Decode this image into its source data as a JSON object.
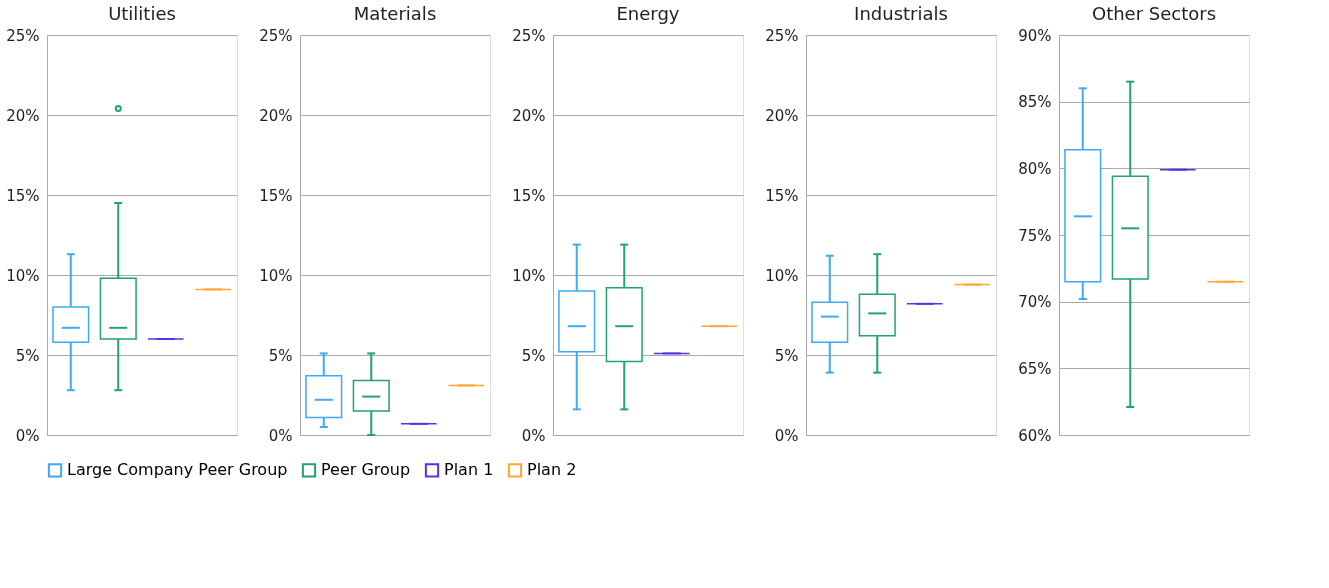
{
  "chart_data": [
    {
      "type": "box",
      "title": "Utilities",
      "categories": [
        null,
        null,
        null,
        null
      ],
      "ylim": [
        0,
        25
      ],
      "yticks": [
        {
          "value": 0,
          "label": "0%"
        },
        {
          "value": 5,
          "label": "5%"
        },
        {
          "value": 10,
          "label": "10%"
        },
        {
          "value": 15,
          "label": "15%"
        },
        {
          "value": 20,
          "label": "20%"
        },
        {
          "value": 25,
          "label": "25%"
        }
      ],
      "grid": "y",
      "legend": "bottom",
      "tick_labels": "y",
      "series": [
        {
          "name": "Large Company Peer Group",
          "color": "#3fa9f5",
          "type": "box",
          "boxes": [
            {
              "low": 2.8,
              "q1": 5.8,
              "median": 6.7,
              "q3": 8.0,
              "high": 11.3
            },
            null,
            null,
            null
          ]
        },
        {
          "name": "Peer Group",
          "color": "#21a36f",
          "type": "box",
          "boxes": [
            null,
            {
              "low": 2.8,
              "q1": 6.0,
              "median": 6.7,
              "q3": 9.8,
              "high": 14.5,
              "outliers": [
                20.4
              ]
            },
            null,
            null
          ]
        },
        {
          "name": "Plan 1",
          "color": "#5b2ee8",
          "type": "box",
          "boxes": [
            null,
            null,
            {
              "low": 6.0,
              "q1": 6.0,
              "median": 6.0,
              "q3": 6.0,
              "high": 6.0
            },
            null
          ]
        },
        {
          "name": "Plan 2",
          "color": "#ffa630",
          "type": "box",
          "boxes": [
            null,
            null,
            null,
            {
              "low": 9.1,
              "q1": 9.1,
              "median": 9.1,
              "q3": 9.1,
              "high": 9.1
            }
          ]
        }
      ]
    },
    {
      "type": "box",
      "title": "Materials",
      "categories": [
        null,
        null,
        null,
        null
      ],
      "ylim": [
        0,
        25
      ],
      "yticks": [
        {
          "value": 0,
          "label": "0%"
        },
        {
          "value": 5,
          "label": "5%"
        },
        {
          "value": 10,
          "label": "10%"
        },
        {
          "value": 15,
          "label": "15%"
        },
        {
          "value": 20,
          "label": "20%"
        },
        {
          "value": 25,
          "label": "25%"
        }
      ],
      "grid": "y",
      "tick_labels": "y",
      "series": [
        {
          "color": "#3fa9f5",
          "type": "box",
          "boxes": [
            {
              "low": 0.5,
              "q1": 1.1,
              "median": 2.2,
              "q3": 3.7,
              "high": 5.1
            },
            null,
            null,
            null
          ]
        },
        {
          "color": "#21a36f",
          "type": "box",
          "boxes": [
            null,
            {
              "low": 0.0,
              "q1": 1.5,
              "median": 2.4,
              "q3": 3.4,
              "high": 5.1
            },
            null,
            null
          ]
        },
        {
          "color": "#5b2ee8",
          "type": "box",
          "boxes": [
            null,
            null,
            {
              "low": 0.7,
              "q1": 0.7,
              "median": 0.7,
              "q3": 0.7,
              "high": 0.7
            },
            null
          ]
        },
        {
          "color": "#ffa630",
          "type": "box",
          "boxes": [
            null,
            null,
            null,
            {
              "low": 3.1,
              "q1": 3.1,
              "median": 3.1,
              "q3": 3.1,
              "high": 3.1
            }
          ]
        }
      ]
    },
    {
      "type": "box",
      "title": "Energy",
      "categories": [
        null,
        null,
        null,
        null
      ],
      "ylim": [
        0,
        25
      ],
      "yticks": [
        {
          "value": 0,
          "label": "0%"
        },
        {
          "value": 5,
          "label": "5%"
        },
        {
          "value": 10,
          "label": "10%"
        },
        {
          "value": 15,
          "label": "15%"
        },
        {
          "value": 20,
          "label": "20%"
        },
        {
          "value": 25,
          "label": "25%"
        }
      ],
      "grid": "y",
      "tick_labels": "y",
      "series": [
        {
          "color": "#3fa9f5",
          "type": "box",
          "boxes": [
            {
              "low": 1.6,
              "q1": 5.2,
              "median": 6.8,
              "q3": 9.0,
              "high": 11.9
            },
            null,
            null,
            null
          ]
        },
        {
          "color": "#21a36f",
          "type": "box",
          "boxes": [
            null,
            {
              "low": 1.6,
              "q1": 4.6,
              "median": 6.8,
              "q3": 9.2,
              "high": 11.9
            },
            null,
            null
          ]
        },
        {
          "color": "#5b2ee8",
          "type": "box",
          "boxes": [
            null,
            null,
            {
              "low": 5.1,
              "q1": 5.1,
              "median": 5.1,
              "q3": 5.1,
              "high": 5.1
            },
            null
          ]
        },
        {
          "color": "#ffa630",
          "type": "box",
          "boxes": [
            null,
            null,
            null,
            {
              "low": 6.8,
              "q1": 6.8,
              "median": 6.8,
              "q3": 6.8,
              "high": 6.8
            }
          ]
        }
      ]
    },
    {
      "type": "box",
      "title": "Industrials",
      "categories": [
        null,
        null,
        null,
        null
      ],
      "ylim": [
        0,
        25
      ],
      "yticks": [
        {
          "value": 0,
          "label": "0%"
        },
        {
          "value": 5,
          "label": "5%"
        },
        {
          "value": 10,
          "label": "10%"
        },
        {
          "value": 15,
          "label": "15%"
        },
        {
          "value": 20,
          "label": "20%"
        },
        {
          "value": 25,
          "label": "25%"
        }
      ],
      "grid": "y",
      "tick_labels": "y",
      "series": [
        {
          "color": "#3fa9f5",
          "type": "box",
          "boxes": [
            {
              "low": 3.9,
              "q1": 5.8,
              "median": 7.4,
              "q3": 8.3,
              "high": 11.2
            },
            null,
            null,
            null
          ]
        },
        {
          "color": "#21a36f",
          "type": "box",
          "boxes": [
            null,
            {
              "low": 3.9,
              "q1": 6.2,
              "median": 7.6,
              "q3": 8.8,
              "high": 11.3
            },
            null,
            null
          ]
        },
        {
          "color": "#5b2ee8",
          "type": "box",
          "boxes": [
            null,
            null,
            {
              "low": 8.2,
              "q1": 8.2,
              "median": 8.2,
              "q3": 8.2,
              "high": 8.2
            },
            null
          ]
        },
        {
          "color": "#ffa630",
          "type": "box",
          "boxes": [
            null,
            null,
            null,
            {
              "low": 9.4,
              "q1": 9.4,
              "median": 9.4,
              "q3": 9.4,
              "high": 9.4
            }
          ]
        }
      ]
    },
    {
      "type": "box",
      "title": "Other Sectors",
      "categories": [
        null,
        null,
        null,
        null
      ],
      "ylim": [
        60,
        90
      ],
      "yticks": [
        {
          "value": 60,
          "label": "60%"
        },
        {
          "value": 65,
          "label": "65%"
        },
        {
          "value": 70,
          "label": "70%"
        },
        {
          "value": 75,
          "label": "75%"
        },
        {
          "value": 80,
          "label": "80%"
        },
        {
          "value": 85,
          "label": "85%"
        },
        {
          "value": 90,
          "label": "90%"
        }
      ],
      "grid": "y",
      "tick_labels": "y",
      "series": [
        {
          "color": "#3fa9f5",
          "type": "box",
          "boxes": [
            {
              "low": 70.2,
              "q1": 71.5,
              "median": 76.4,
              "q3": 81.4,
              "high": 86.0
            },
            null,
            null,
            null
          ]
        },
        {
          "color": "#21a36f",
          "type": "box",
          "boxes": [
            null,
            {
              "low": 62.1,
              "q1": 71.7,
              "median": 75.5,
              "q3": 79.4,
              "high": 86.5
            },
            null,
            null
          ]
        },
        {
          "color": "#5b2ee8",
          "type": "box",
          "boxes": [
            null,
            null,
            {
              "low": 79.9,
              "q1": 79.9,
              "median": 79.9,
              "q3": 79.9,
              "high": 79.9
            },
            null
          ]
        },
        {
          "color": "#ffa630",
          "type": "box",
          "boxes": [
            null,
            null,
            null,
            {
              "low": 71.5,
              "q1": 71.5,
              "median": 71.5,
              "q3": 71.5,
              "high": 71.5
            }
          ]
        }
      ]
    }
  ]
}
